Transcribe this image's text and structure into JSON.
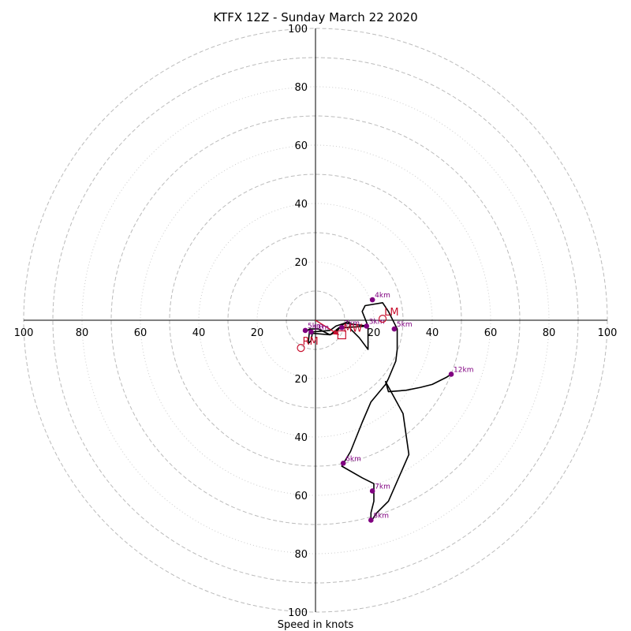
{
  "chart_data": {
    "type": "scatter",
    "title": "KTFX 12Z - Sunday March 22 2020",
    "xlabel": "Speed in knots",
    "xlim": [
      -100,
      100
    ],
    "ylim": [
      -100,
      100
    ],
    "tick_labels": {
      "left": [
        "100",
        "80",
        "60",
        "40",
        "20"
      ],
      "right": [
        "20",
        "40",
        "60",
        "80",
        "100"
      ],
      "up": [
        "20",
        "40",
        "60",
        "80",
        "100"
      ],
      "down": [
        "20",
        "40",
        "60",
        "80",
        "100"
      ]
    },
    "rings": {
      "major": [
        10,
        30,
        50,
        70,
        90
      ],
      "minor": [
        20,
        40,
        60,
        80,
        100
      ],
      "outer_major": 100
    },
    "hodograph": [
      [
        -3.5,
        -4
      ],
      [
        -2,
        -3
      ],
      [
        1,
        -3
      ],
      [
        5,
        -5
      ],
      [
        7,
        -4
      ],
      [
        9,
        -2
      ],
      [
        10,
        -2.5
      ],
      [
        18,
        -2
      ],
      [
        18,
        -10
      ],
      [
        15,
        -6
      ],
      [
        12,
        -3
      ],
      [
        12,
        -1
      ],
      [
        11,
        -0.5
      ],
      [
        10,
        -1
      ],
      [
        7,
        -2
      ],
      [
        5,
        -3.5
      ],
      [
        -1,
        -4
      ],
      [
        -1.5,
        -7
      ],
      [
        -2.5,
        -8
      ],
      [
        -2,
        -3
      ],
      [
        -1,
        -4.5
      ],
      [
        5,
        -5
      ],
      [
        10,
        -1
      ],
      [
        18,
        -2
      ],
      [
        16,
        3
      ],
      [
        17,
        5
      ],
      [
        23,
        6
      ],
      [
        25,
        3
      ],
      [
        27,
        -1
      ],
      [
        28,
        -3
      ],
      [
        28,
        -10
      ],
      [
        27.5,
        -14
      ],
      [
        25,
        -20
      ],
      [
        24,
        -22
      ],
      [
        19,
        -28
      ],
      [
        16,
        -35
      ],
      [
        12,
        -45
      ],
      [
        9,
        -50
      ],
      [
        16,
        -54
      ],
      [
        20,
        -56
      ],
      [
        20,
        -62
      ],
      [
        19,
        -66
      ],
      [
        19,
        -69
      ],
      [
        21,
        -66
      ],
      [
        25,
        -62
      ],
      [
        32,
        -46
      ],
      [
        30,
        -32
      ],
      [
        24,
        -21
      ],
      [
        25,
        -24.5
      ],
      [
        31,
        -24
      ],
      [
        36,
        -23
      ],
      [
        40,
        -22
      ],
      [
        45,
        -19.5
      ],
      [
        46.5,
        -18.5
      ]
    ],
    "height_markers": [
      {
        "label": "5km",
        "x": -3.5,
        "y": -3.5
      },
      {
        "label": "1km",
        "x": -1.5,
        "y": -4
      },
      {
        "label": "2km",
        "x": 9,
        "y": -2.5
      },
      {
        "label": "3km",
        "x": 17.5,
        "y": -2
      },
      {
        "label": "4km",
        "x": 19.5,
        "y": 7
      },
      {
        "label": "5km",
        "x": 27,
        "y": -3
      },
      {
        "label": "12km",
        "x": 46.5,
        "y": -18.5
      },
      {
        "label": "6km",
        "x": 9.5,
        "y": -49
      },
      {
        "label": "7km",
        "x": 19.5,
        "y": -58.5
      },
      {
        "label": "8km",
        "x": 19,
        "y": -68.5
      }
    ],
    "storm_motions": [
      {
        "label": "LM",
        "x": 23,
        "y": 0.5,
        "marker": "circle"
      },
      {
        "label": "RM",
        "x": -5,
        "y": -9.5,
        "marker": "circle"
      },
      {
        "label": "MW",
        "x": 9,
        "y": -5,
        "marker": "square"
      }
    ],
    "shear_arrow": {
      "from": [
        0,
        0
      ],
      "to": [
        8,
        -5
      ]
    },
    "colors": {
      "hodograph": "#000000",
      "markers": "#800080",
      "storm_motion": "#c8102e",
      "grid": "#bbbbbb"
    }
  }
}
